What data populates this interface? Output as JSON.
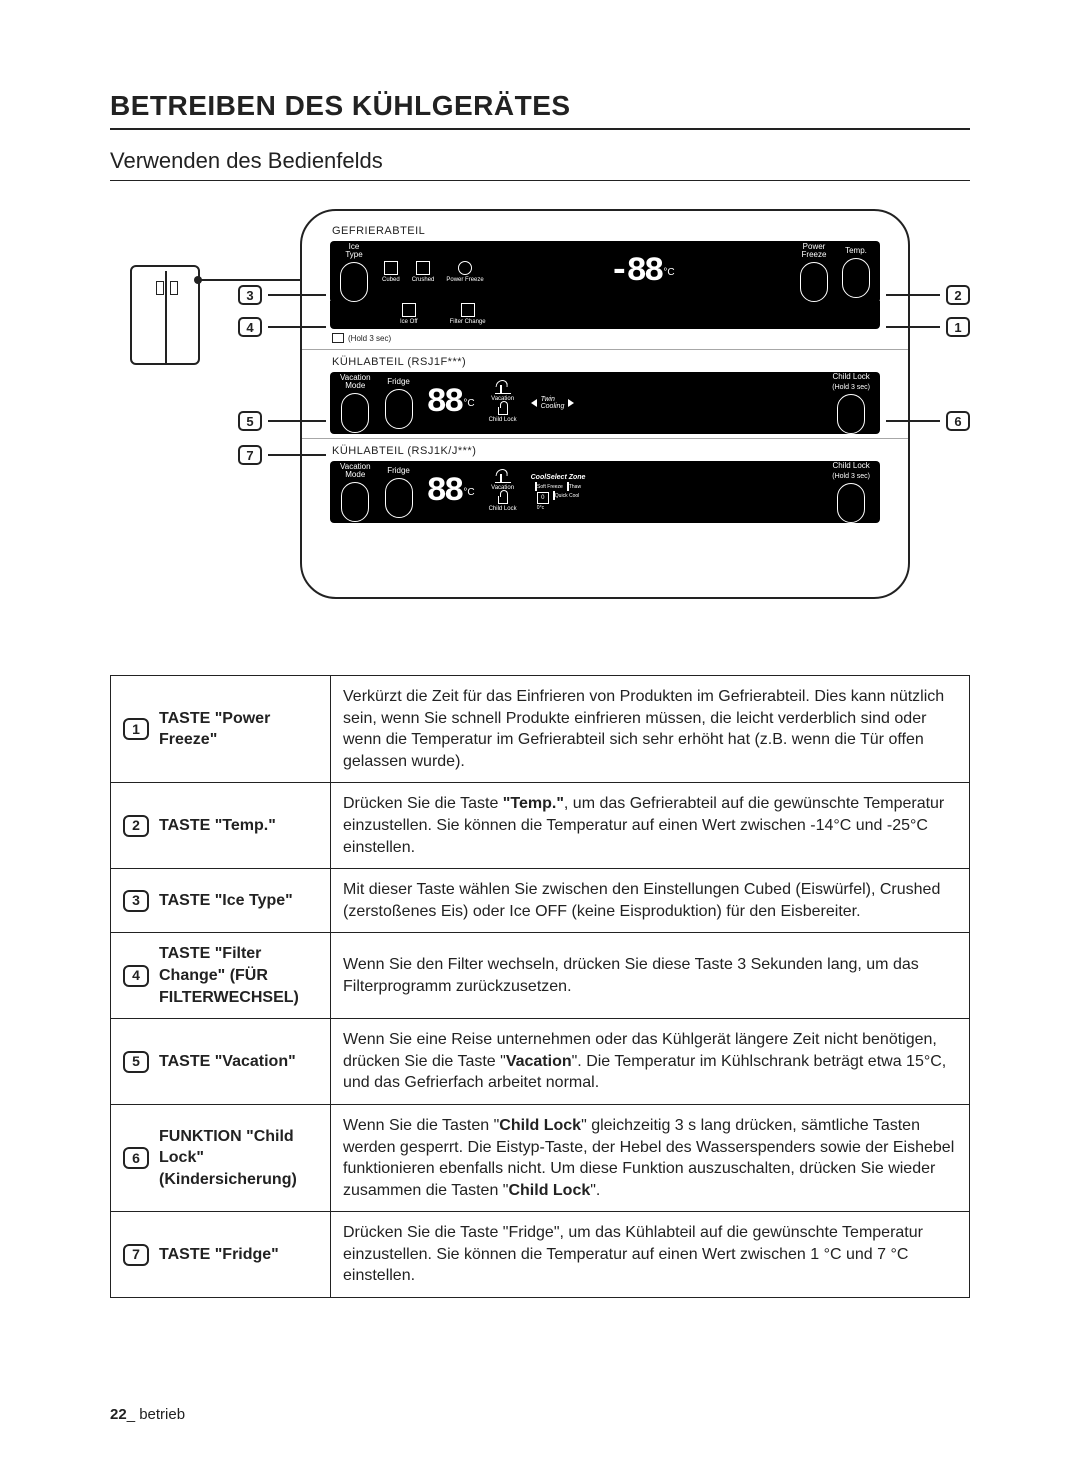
{
  "page": {
    "title": "BETREIBEN DES KÜHLGERÄTES",
    "subtitle": "Verwenden des Bedienfelds",
    "footer_page": "22",
    "footer_label": "_ betrieb"
  },
  "diagram": {
    "section_freezer": "GEFRIERABTEIL",
    "section_fridge_a": "KÜHLABTEIL (RSJ1F***)",
    "section_fridge_b": "KÜHLABTEIL (RSJ1K/J***)",
    "hold_label": "(Hold 3 sec)",
    "freezer": {
      "ice_type": "Ice\nType",
      "cubed": "Cubed",
      "crushed": "Crushed",
      "power_freeze_icon": "Power Freeze",
      "ice_off": "Ice Off",
      "filter_change": "Filter Change",
      "temp_digits": "-88",
      "deg": "°C",
      "power_freeze": "Power\nFreeze",
      "temp": "Temp."
    },
    "fridge_a": {
      "vacation_mode": "Vacation\nMode",
      "fridge": "Fridge",
      "digits": "88",
      "deg": "°C",
      "vacation_icon": "Vacation",
      "child_lock_icon": "Child Lock",
      "twin_cooling": "Twin\nCooling",
      "child_lock": "Child Lock",
      "hold": "(Hold 3 sec)"
    },
    "fridge_b": {
      "vacation_mode": "Vacation\nMode",
      "fridge": "Fridge",
      "digits": "88",
      "deg": "°C",
      "vacation_icon": "Vacation",
      "child_lock_icon": "Child Lock",
      "csz": "CoolSelect Zone",
      "soft_freeze": "Soft Freeze",
      "thaw": "Thaw",
      "zero": "0°c",
      "cool": "Quick Cool",
      "child_lock": "Child Lock",
      "hold": "(Hold 3 sec)"
    },
    "callouts": {
      "c1": "1",
      "c2": "2",
      "c3": "3",
      "c4": "4",
      "c5": "5",
      "c6": "6",
      "c7": "7"
    }
  },
  "table": {
    "rows": [
      {
        "num": "1",
        "key": "TASTE \"Power Freeze\"",
        "desc": "Verkürzt die Zeit für das Einfrieren von Produkten im Gefrierabteil. Dies kann nützlich sein, wenn Sie schnell Produkte einfrieren müssen, die leicht verderblich sind oder wenn die Temperatur im Gefrierabteil sich sehr erhöht hat (z.B. wenn die Tür offen gelassen wurde)."
      },
      {
        "num": "2",
        "key": "TASTE \"Temp.\"",
        "desc": "Drücken Sie die Taste <b>\"Temp.\"</b>, um das Gefrierabteil auf die gewünschte Temperatur einzustellen. Sie können die Temperatur auf einen Wert zwischen -14°C und -25°C einstellen."
      },
      {
        "num": "3",
        "key": "TASTE \"Ice Type\"",
        "desc": "Mit dieser Taste wählen Sie zwischen den Einstellungen Cubed (Eiswürfel), Crushed (zerstoßenes Eis) oder Ice OFF (keine Eisproduktion) für den Eisbereiter."
      },
      {
        "num": "4",
        "key": "TASTE \"Filter Change\" (FÜR FILTERWECHSEL)",
        "desc": "Wenn Sie den Filter wechseln, drücken Sie diese Taste 3 Sekunden lang, um das Filterprogramm zurückzusetzen."
      },
      {
        "num": "5",
        "key": "TASTE \"Vacation\"",
        "desc": "Wenn Sie eine Reise unternehmen oder das Kühlgerät längere Zeit nicht benötigen, drücken Sie die Taste \"<b>Vacation</b>\". Die Temperatur im Kühlschrank beträgt etwa 15°C, und das Gefrierfach arbeitet normal."
      },
      {
        "num": "6",
        "key": "FUNKTION \"Child Lock\" (Kindersicherung)",
        "desc": "Wenn Sie die Tasten \"<b>Child Lock</b>\" gleichzeitig 3 s lang drücken, sämtliche Tasten werden gesperrt. Die Eistyp-Taste, der Hebel des Wasserspenders sowie der Eishebel funktionieren ebenfalls nicht. Um diese Funktion auszuschalten, drücken Sie wieder zusammen die Tasten \"<b>Child Lock</b>\"."
      },
      {
        "num": "7",
        "key": "TASTE \"Fridge\"",
        "desc": "Drücken Sie die Taste \"Fridge\", um das Kühlabteil auf die gewünschte Temperatur einzustellen. Sie können die Temperatur auf einen Wert zwischen 1 °C und 7 °C einstellen."
      }
    ]
  }
}
